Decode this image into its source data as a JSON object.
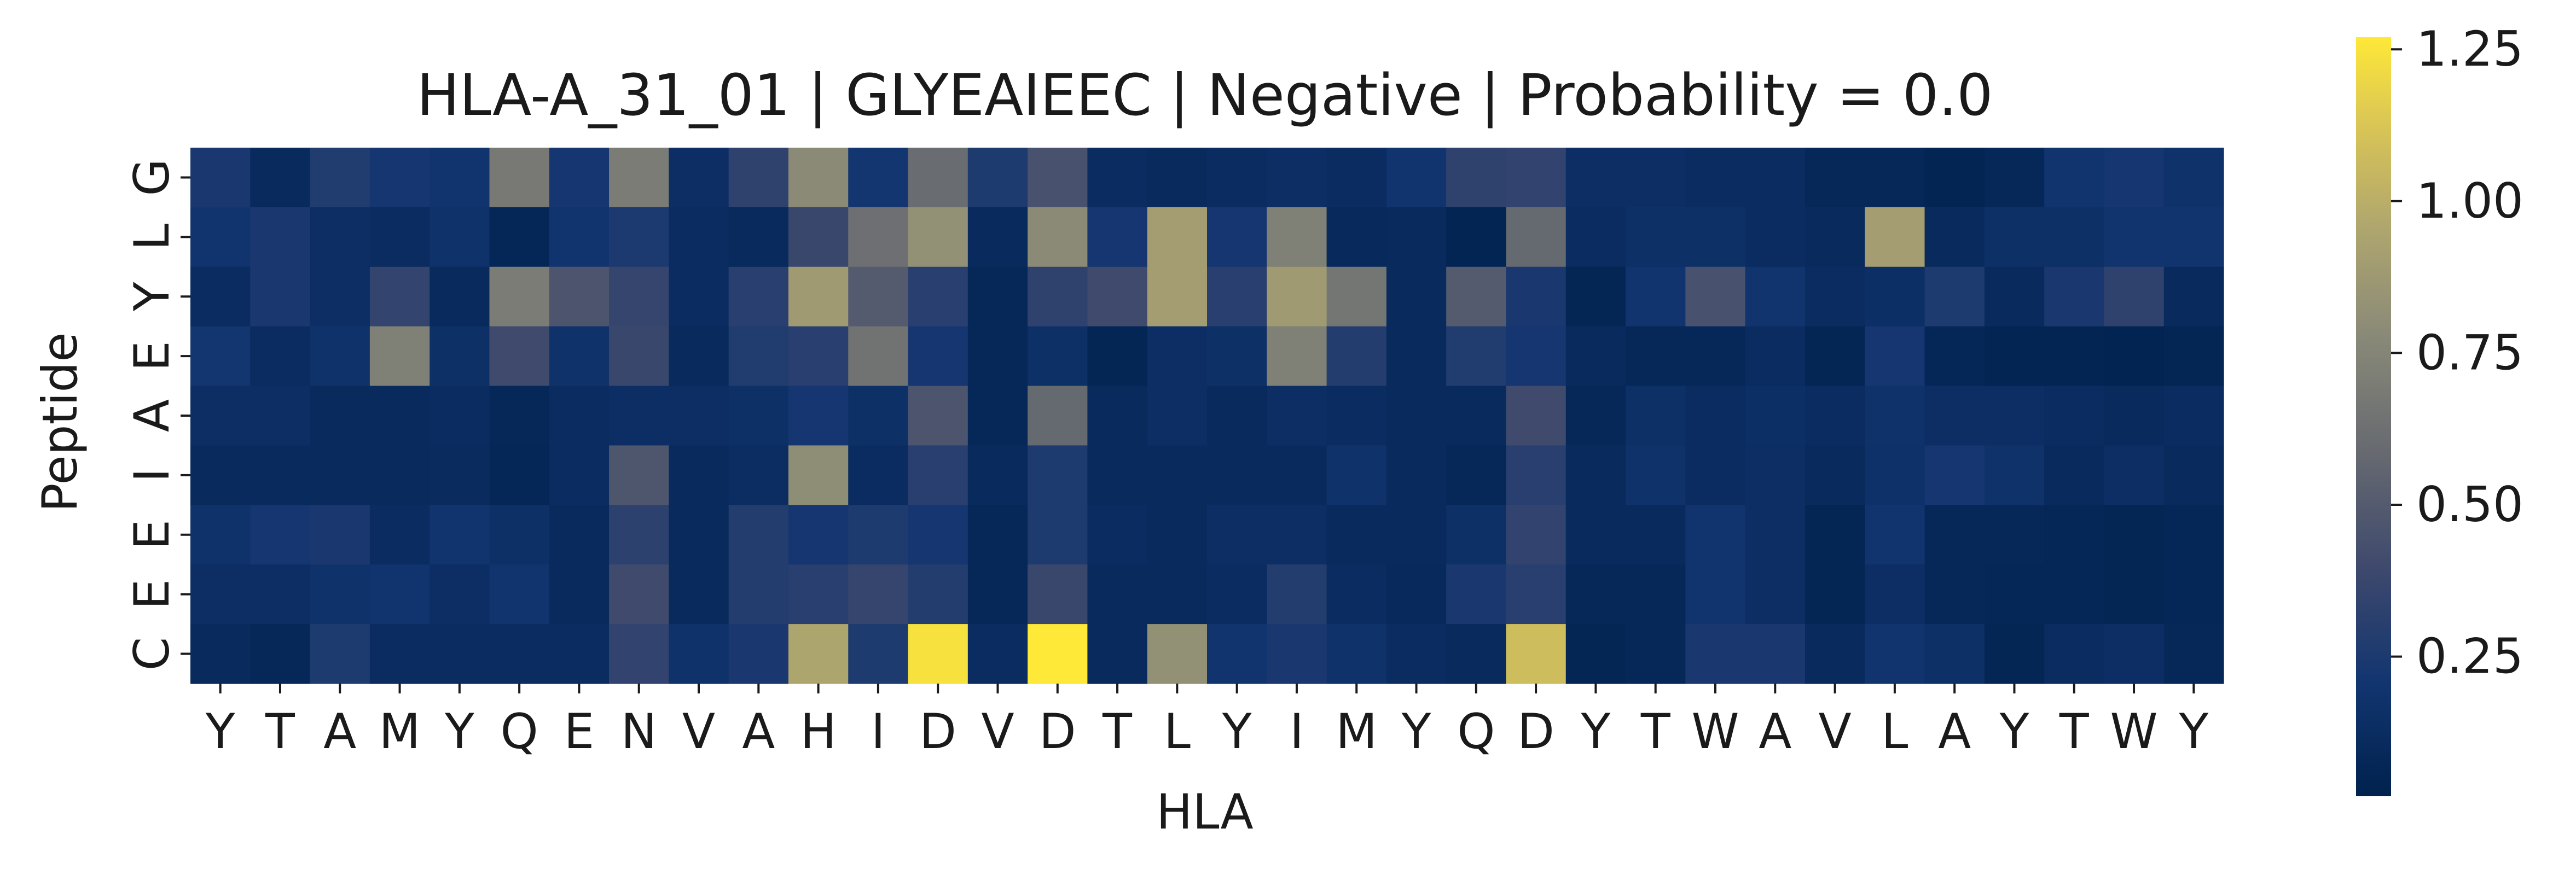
{
  "chart_data": {
    "type": "heatmap",
    "title": "HLA-A_31_01 | GLYEAIEEC | Negative | Probability = 0.0",
    "xlabel": "HLA",
    "ylabel": "Peptide",
    "x_categories": [
      "Y",
      "T",
      "A",
      "M",
      "Y",
      "Q",
      "E",
      "N",
      "V",
      "A",
      "H",
      "I",
      "D",
      "V",
      "D",
      "T",
      "L",
      "Y",
      "I",
      "M",
      "Y",
      "Q",
      "D",
      "Y",
      "T",
      "W",
      "A",
      "V",
      "L",
      "A",
      "Y",
      "T",
      "W",
      "Y"
    ],
    "y_categories": [
      "G",
      "L",
      "Y",
      "E",
      "A",
      "I",
      "E",
      "E",
      "C"
    ],
    "colormap": "cividis",
    "vmin": 0.02,
    "vmax": 1.27,
    "colorbar_ticks": [
      {
        "value": 0.25,
        "label": "0.25"
      },
      {
        "value": 0.5,
        "label": "0.50"
      },
      {
        "value": 0.75,
        "label": "0.75"
      },
      {
        "value": 1.0,
        "label": "1.00"
      },
      {
        "value": 1.25,
        "label": "1.25"
      }
    ],
    "values": [
      [
        0.24,
        0.1,
        0.27,
        0.22,
        0.2,
        0.68,
        0.22,
        0.7,
        0.14,
        0.33,
        0.78,
        0.21,
        0.6,
        0.26,
        0.44,
        0.12,
        0.1,
        0.12,
        0.14,
        0.12,
        0.2,
        0.33,
        0.34,
        0.14,
        0.14,
        0.12,
        0.12,
        0.08,
        0.08,
        0.05,
        0.08,
        0.2,
        0.22,
        0.18
      ],
      [
        0.2,
        0.24,
        0.14,
        0.12,
        0.18,
        0.07,
        0.2,
        0.25,
        0.12,
        0.1,
        0.38,
        0.62,
        0.82,
        0.1,
        0.78,
        0.22,
        0.9,
        0.22,
        0.72,
        0.09,
        0.1,
        0.05,
        0.58,
        0.12,
        0.16,
        0.16,
        0.12,
        0.1,
        0.9,
        0.1,
        0.16,
        0.16,
        0.2,
        0.2
      ],
      [
        0.12,
        0.24,
        0.14,
        0.35,
        0.1,
        0.7,
        0.46,
        0.36,
        0.12,
        0.3,
        0.88,
        0.5,
        0.3,
        0.08,
        0.33,
        0.4,
        0.9,
        0.3,
        0.88,
        0.66,
        0.1,
        0.5,
        0.24,
        0.06,
        0.2,
        0.44,
        0.2,
        0.12,
        0.15,
        0.26,
        0.1,
        0.24,
        0.33,
        0.1
      ],
      [
        0.21,
        0.12,
        0.18,
        0.72,
        0.16,
        0.4,
        0.18,
        0.38,
        0.1,
        0.27,
        0.3,
        0.64,
        0.22,
        0.08,
        0.16,
        0.06,
        0.14,
        0.16,
        0.72,
        0.28,
        0.1,
        0.27,
        0.22,
        0.1,
        0.08,
        0.08,
        0.12,
        0.06,
        0.22,
        0.07,
        0.05,
        0.05,
        0.04,
        0.06
      ],
      [
        0.14,
        0.14,
        0.1,
        0.1,
        0.12,
        0.08,
        0.12,
        0.14,
        0.14,
        0.16,
        0.22,
        0.16,
        0.46,
        0.08,
        0.58,
        0.1,
        0.14,
        0.1,
        0.14,
        0.12,
        0.1,
        0.1,
        0.4,
        0.08,
        0.16,
        0.12,
        0.15,
        0.12,
        0.18,
        0.14,
        0.14,
        0.12,
        0.1,
        0.12
      ],
      [
        0.1,
        0.1,
        0.1,
        0.1,
        0.11,
        0.07,
        0.12,
        0.47,
        0.1,
        0.13,
        0.8,
        0.12,
        0.3,
        0.1,
        0.26,
        0.1,
        0.1,
        0.1,
        0.1,
        0.18,
        0.1,
        0.08,
        0.3,
        0.1,
        0.18,
        0.12,
        0.14,
        0.1,
        0.17,
        0.22,
        0.18,
        0.1,
        0.14,
        0.1
      ],
      [
        0.18,
        0.22,
        0.24,
        0.12,
        0.2,
        0.16,
        0.1,
        0.32,
        0.1,
        0.28,
        0.22,
        0.26,
        0.22,
        0.08,
        0.26,
        0.12,
        0.1,
        0.14,
        0.14,
        0.1,
        0.1,
        0.16,
        0.34,
        0.1,
        0.1,
        0.2,
        0.14,
        0.06,
        0.2,
        0.08,
        0.08,
        0.07,
        0.06,
        0.07
      ],
      [
        0.14,
        0.14,
        0.18,
        0.2,
        0.14,
        0.2,
        0.1,
        0.4,
        0.1,
        0.28,
        0.3,
        0.36,
        0.28,
        0.08,
        0.38,
        0.1,
        0.1,
        0.12,
        0.28,
        0.12,
        0.09,
        0.24,
        0.3,
        0.08,
        0.08,
        0.2,
        0.14,
        0.06,
        0.14,
        0.08,
        0.07,
        0.07,
        0.06,
        0.07
      ],
      [
        0.1,
        0.08,
        0.26,
        0.12,
        0.12,
        0.12,
        0.12,
        0.34,
        0.18,
        0.24,
        0.95,
        0.26,
        1.24,
        0.12,
        1.27,
        0.1,
        0.82,
        0.2,
        0.24,
        0.18,
        0.12,
        0.1,
        1.08,
        0.06,
        0.08,
        0.24,
        0.24,
        0.1,
        0.2,
        0.16,
        0.06,
        0.12,
        0.14,
        0.08
      ]
    ]
  }
}
